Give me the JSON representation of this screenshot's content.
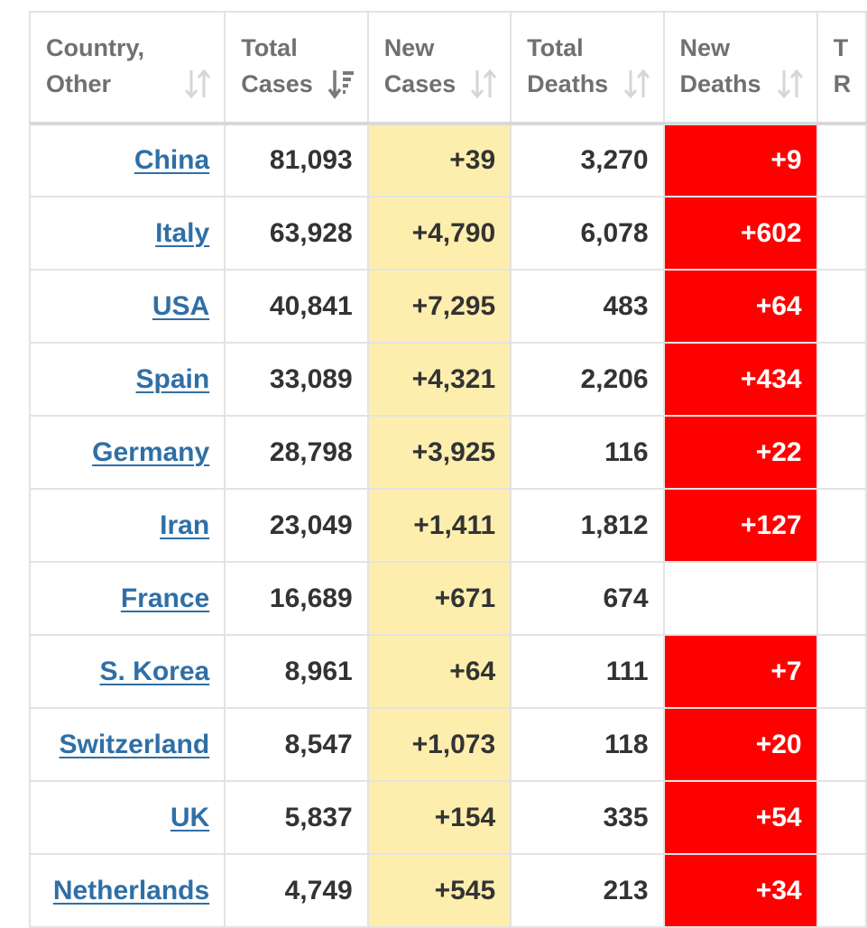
{
  "table": {
    "headers": [
      {
        "line1": "Country,",
        "line2": "Other",
        "sort_icon": "sort-unsorted-icon"
      },
      {
        "line1": "Total",
        "line2": "Cases",
        "sort_icon": "sort-descending-icon"
      },
      {
        "line1": "New",
        "line2": "Cases",
        "sort_icon": "sort-unsorted-icon"
      },
      {
        "line1": "Total",
        "line2": "Deaths",
        "sort_icon": "sort-unsorted-icon"
      },
      {
        "line1": "New",
        "line2": "Deaths",
        "sort_icon": "sort-unsorted-icon"
      },
      {
        "line1": "T",
        "line2": "R"
      }
    ],
    "rows": [
      {
        "country": "China",
        "total_cases": "81,093",
        "new_cases": "+39",
        "total_deaths": "3,270",
        "new_deaths": "+9"
      },
      {
        "country": "Italy",
        "total_cases": "63,928",
        "new_cases": "+4,790",
        "total_deaths": "6,078",
        "new_deaths": "+602"
      },
      {
        "country": "USA",
        "total_cases": "40,841",
        "new_cases": "+7,295",
        "total_deaths": "483",
        "new_deaths": "+64"
      },
      {
        "country": "Spain",
        "total_cases": "33,089",
        "new_cases": "+4,321",
        "total_deaths": "2,206",
        "new_deaths": "+434"
      },
      {
        "country": "Germany",
        "total_cases": "28,798",
        "new_cases": "+3,925",
        "total_deaths": "116",
        "new_deaths": "+22"
      },
      {
        "country": "Iran",
        "total_cases": "23,049",
        "new_cases": "+1,411",
        "total_deaths": "1,812",
        "new_deaths": "+127"
      },
      {
        "country": "France",
        "total_cases": "16,689",
        "new_cases": "+671",
        "total_deaths": "674",
        "new_deaths": ""
      },
      {
        "country": "S. Korea",
        "total_cases": "8,961",
        "new_cases": "+64",
        "total_deaths": "111",
        "new_deaths": "+7"
      },
      {
        "country": "Switzerland",
        "total_cases": "8,547",
        "new_cases": "+1,073",
        "total_deaths": "118",
        "new_deaths": "+20"
      },
      {
        "country": "UK",
        "total_cases": "5,837",
        "new_cases": "+154",
        "total_deaths": "335",
        "new_deaths": "+54"
      },
      {
        "country": "Netherlands",
        "total_cases": "4,749",
        "new_cases": "+545",
        "total_deaths": "213",
        "new_deaths": "+34"
      }
    ]
  },
  "colors": {
    "new_cases_bg": "#fdeeae",
    "new_deaths_bg": "#ff0000",
    "link": "#2f6fa6",
    "grid_line": "#e3e3e3",
    "header_text": "#707070"
  }
}
